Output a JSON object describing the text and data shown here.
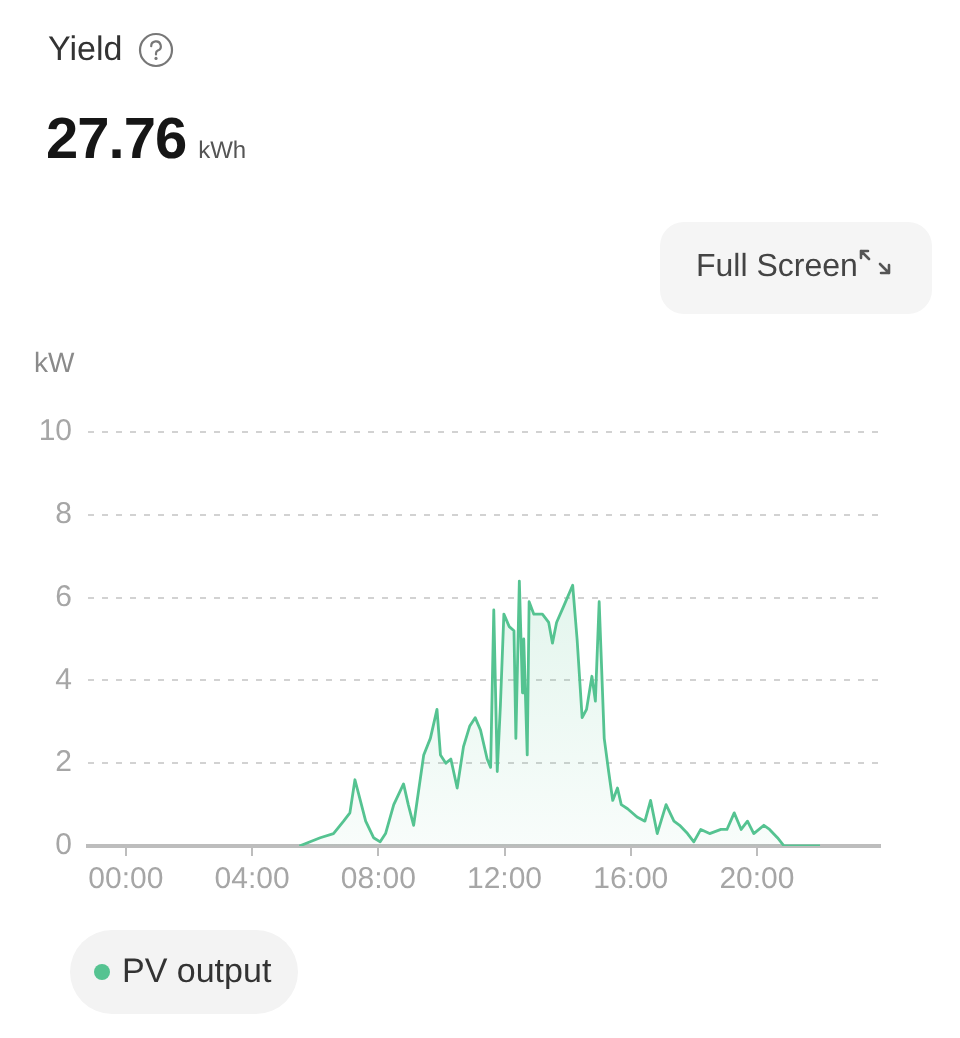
{
  "chart_data": {
    "type": "area",
    "title": "Yield",
    "subtitle": "27.76 kWh",
    "ylabel": "kW",
    "annotations": [
      "Full Screen"
    ],
    "x": [
      5.5,
      6.16,
      6.58,
      6.9,
      7.1,
      7.26,
      7.43,
      7.6,
      7.85,
      8.06,
      8.23,
      8.49,
      8.8,
      8.95,
      9.12,
      9.44,
      9.65,
      9.86,
      9.97,
      10.14,
      10.3,
      10.5,
      10.7,
      10.9,
      11.07,
      11.24,
      11.45,
      11.56,
      11.66,
      11.77,
      11.87,
      11.98,
      12.15,
      12.3,
      12.36,
      12.47,
      12.57,
      12.61,
      12.72,
      12.78,
      12.93,
      13.2,
      13.4,
      13.52,
      13.65,
      13.88,
      14.16,
      14.3,
      14.46,
      14.6,
      14.77,
      14.88,
      15.0,
      15.16,
      15.3,
      15.43,
      15.58,
      15.7,
      15.9,
      16.2,
      16.45,
      16.63,
      16.84,
      17.12,
      17.37,
      17.55,
      17.8,
      18.0,
      18.22,
      18.5,
      18.86,
      19.05,
      19.28,
      19.5,
      19.7,
      19.9,
      20.22,
      20.4,
      20.65,
      20.86,
      22.0
    ],
    "series": [
      {
        "name": "PV output",
        "color": "#55c391",
        "values": [
          0,
          0.2,
          0.3,
          0.6,
          0.8,
          1.6,
          1.1,
          0.6,
          0.2,
          0.1,
          0.3,
          1.0,
          1.5,
          1.0,
          0.5,
          2.2,
          2.6,
          3.3,
          2.2,
          2.0,
          2.1,
          1.4,
          2.4,
          2.9,
          3.1,
          2.8,
          2.1,
          1.9,
          5.7,
          1.8,
          3.4,
          5.6,
          5.3,
          5.2,
          2.6,
          6.4,
          3.7,
          5.0,
          2.2,
          5.9,
          5.6,
          5.6,
          5.4,
          4.9,
          5.4,
          5.8,
          6.3,
          5.0,
          3.1,
          3.3,
          4.1,
          3.5,
          5.9,
          2.6,
          1.8,
          1.1,
          1.4,
          1.0,
          0.9,
          0.7,
          0.6,
          1.1,
          0.3,
          1.0,
          0.6,
          0.5,
          0.3,
          0.1,
          0.4,
          0.3,
          0.4,
          0.4,
          0.8,
          0.4,
          0.6,
          0.3,
          0.5,
          0.4,
          0.2,
          0,
          0
        ]
      }
    ],
    "xlim": [
      -1.2,
      23.9
    ],
    "xticks": [
      {
        "value": 0,
        "label": "00:00"
      },
      {
        "value": 4,
        "label": "04:00"
      },
      {
        "value": 8,
        "label": "08:00"
      },
      {
        "value": 12,
        "label": "12:00"
      },
      {
        "value": 16,
        "label": "16:00"
      },
      {
        "value": 20,
        "label": "20:00"
      }
    ],
    "ylim": [
      0,
      10
    ],
    "yticks": [
      0,
      2,
      4,
      6,
      8,
      10
    ],
    "grid": "y",
    "legend": "bottom left",
    "marker": "none"
  }
}
